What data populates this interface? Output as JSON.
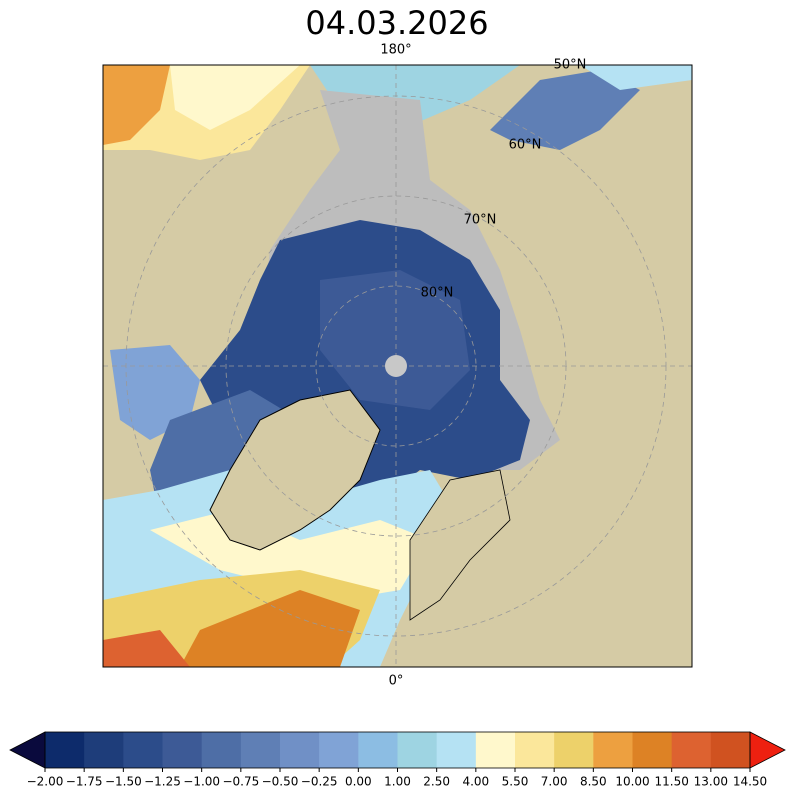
{
  "title": "04.03.2026",
  "map": {
    "labels": {
      "lon_top": "180°",
      "lon_bottom": "0°",
      "lat_50": "50°N",
      "lat_60": "60°N",
      "lat_70": "70°N",
      "lat_80": "80°N"
    }
  },
  "colorbar": {
    "ticks": [
      {
        "value": -2,
        "label": "−2.00"
      },
      {
        "value": -1.75,
        "label": "−1.75"
      },
      {
        "value": -1.5,
        "label": "−1.50"
      },
      {
        "value": -1.25,
        "label": "−1.25"
      },
      {
        "value": -1,
        "label": "−1.00"
      },
      {
        "value": -0.75,
        "label": "−0.75"
      },
      {
        "value": -0.5,
        "label": "−0.50"
      },
      {
        "value": -0.25,
        "label": "−0.25"
      },
      {
        "value": 0,
        "label": "0.00"
      },
      {
        "value": 1,
        "label": "1.00"
      },
      {
        "value": 2.5,
        "label": "2.50"
      },
      {
        "value": 4,
        "label": "4.00"
      },
      {
        "value": 5.5,
        "label": "5.50"
      },
      {
        "value": 7,
        "label": "7.00"
      },
      {
        "value": 8.5,
        "label": "8.50"
      },
      {
        "value": 10,
        "label": "10.00"
      },
      {
        "value": 11.5,
        "label": "11.50"
      },
      {
        "value": 13,
        "label": "13.00"
      },
      {
        "value": 14.5,
        "label": "14.50"
      }
    ],
    "colors": [
      "#0d2b6b",
      "#1e3d7a",
      "#2c4c8a",
      "#3d5a96",
      "#4e6ea6",
      "#5f7fb5",
      "#7090c6",
      "#80a3d6",
      "#8cbde3",
      "#9ed4e2",
      "#b5e2f3",
      "#fff8cc",
      "#fbe79b",
      "#edd16a",
      "#eda040",
      "#dd8225",
      "#dd6230",
      "#d05220"
    ],
    "under_color": "#0a0a3d",
    "over_color": "#ee2010"
  }
}
